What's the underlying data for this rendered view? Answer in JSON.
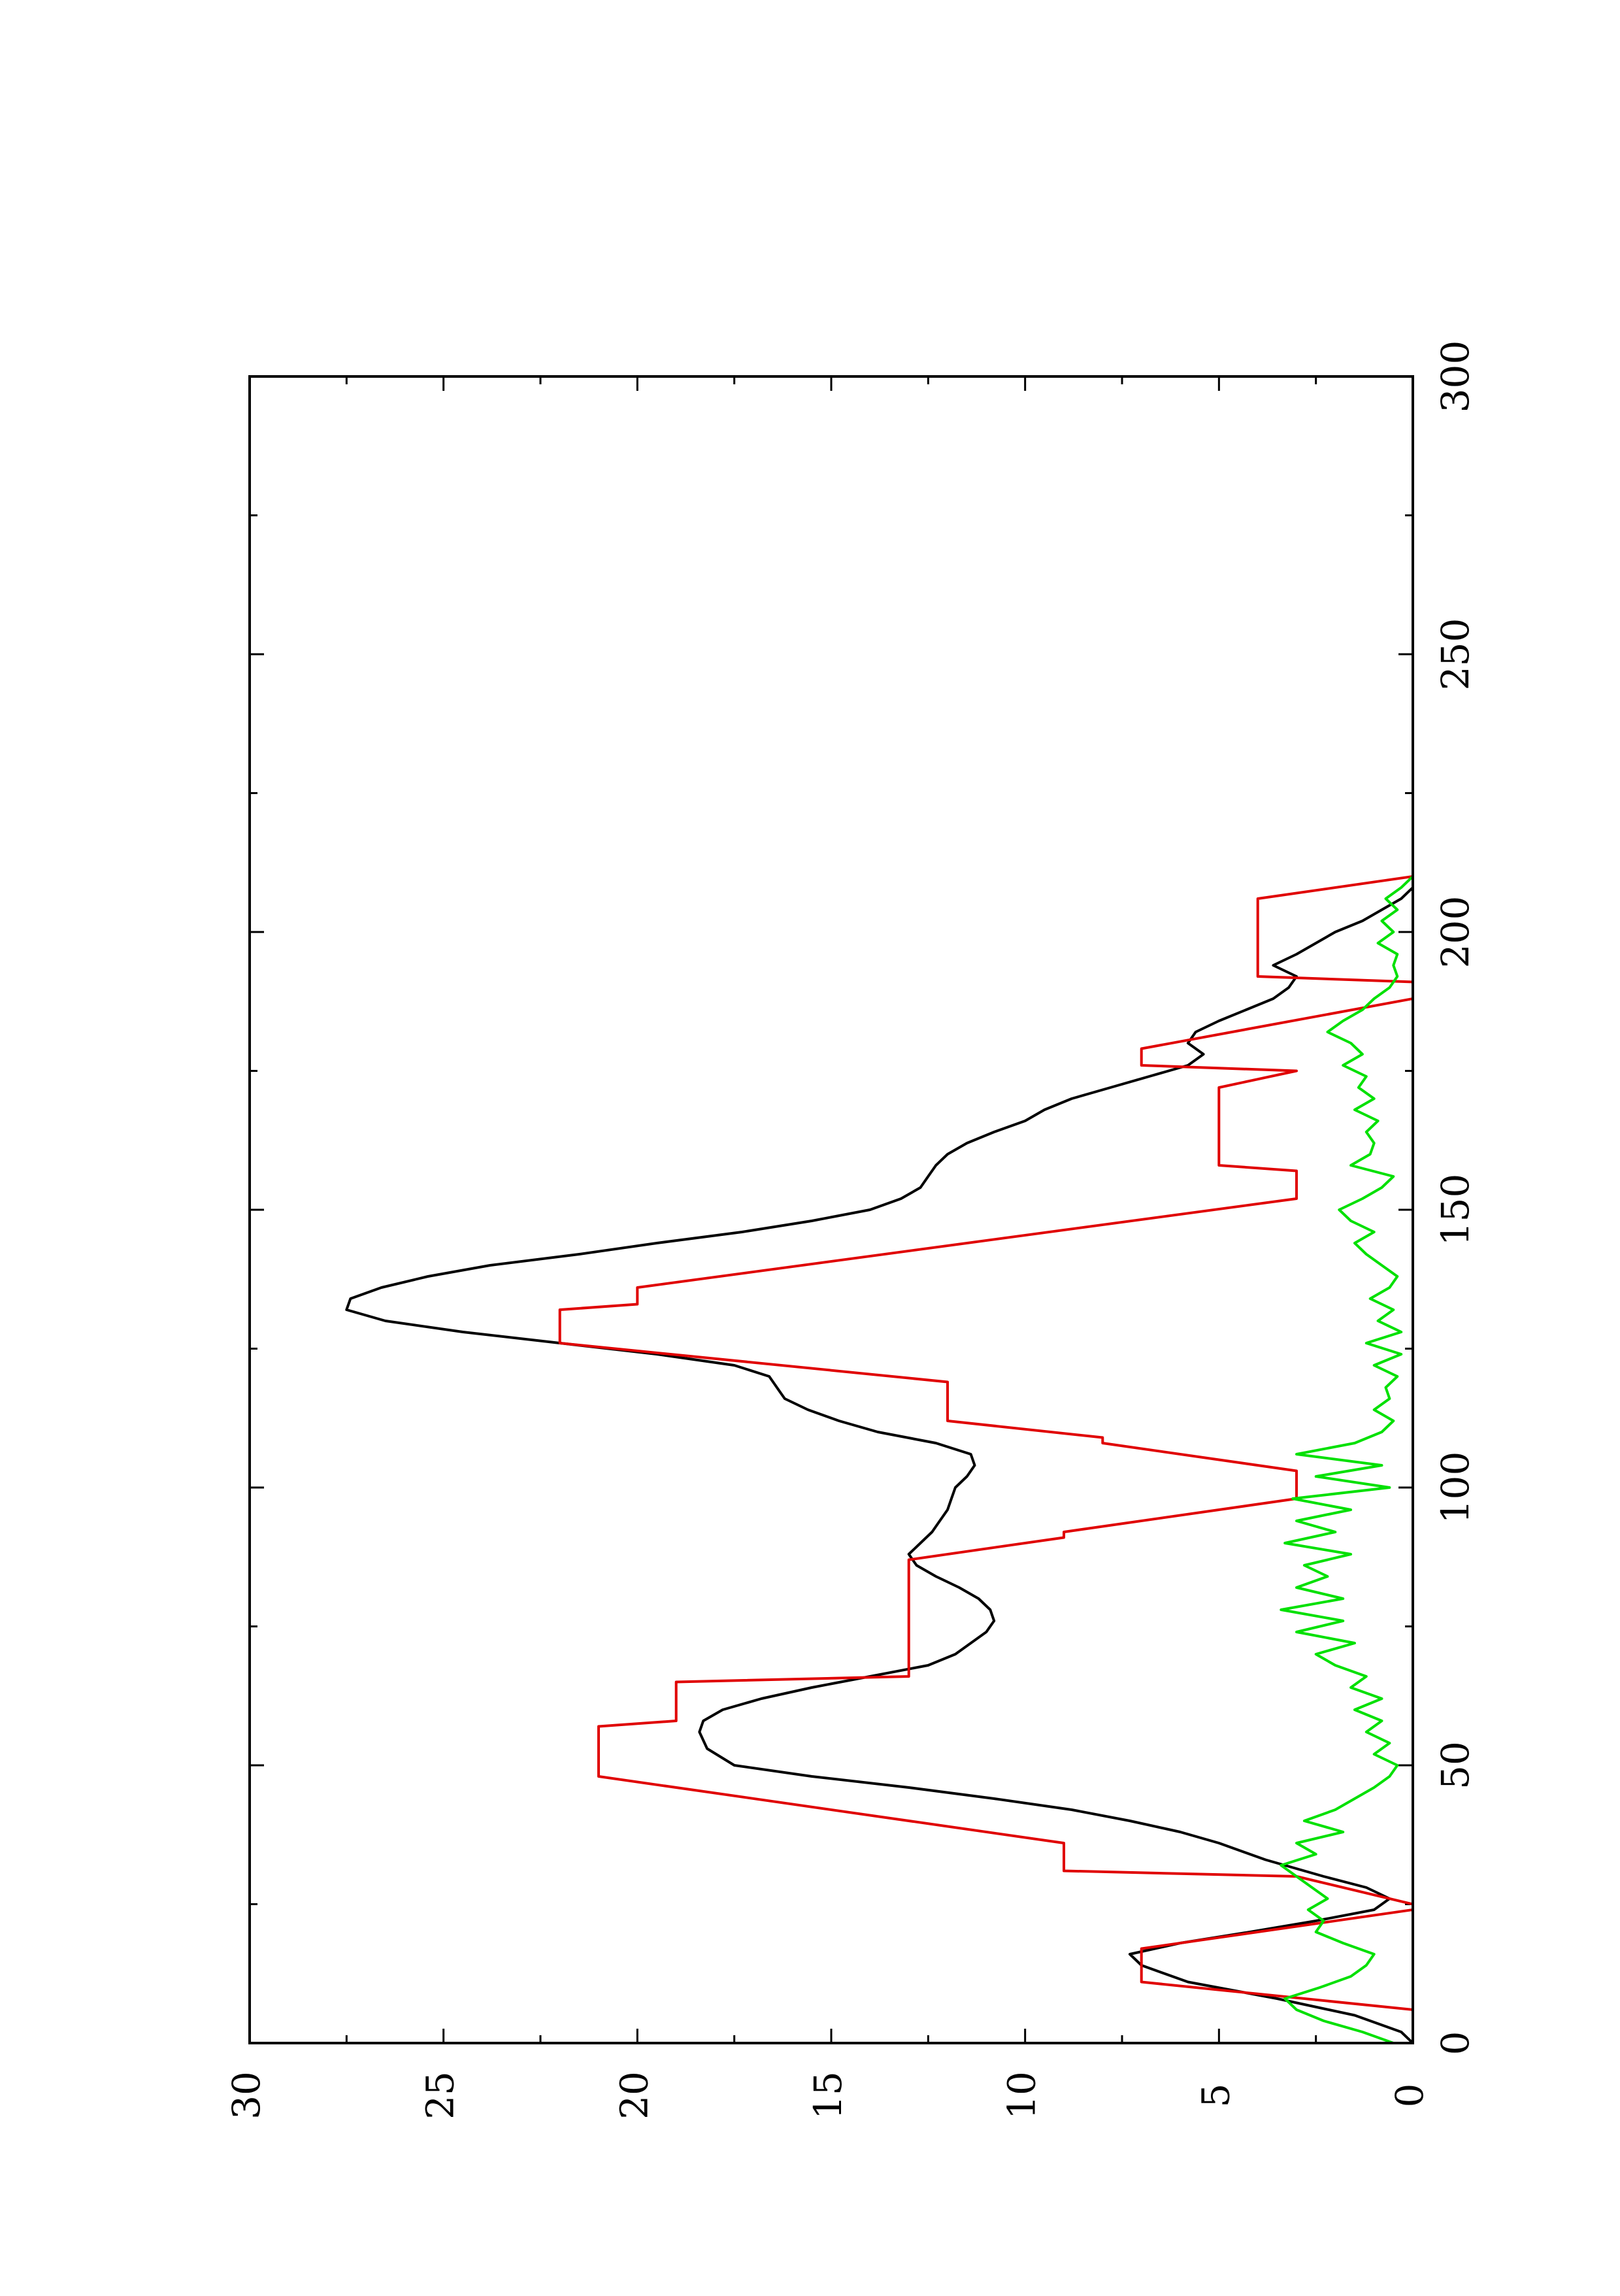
{
  "chart_data": {
    "type": "line",
    "orientation": "rotated-90-ccw",
    "title": "",
    "xlabel": "",
    "ylabel": "",
    "xlim": [
      0,
      300
    ],
    "ylim": [
      0,
      30
    ],
    "grid": false,
    "legend": "none",
    "x_ticks": [
      0,
      50,
      100,
      150,
      200,
      250,
      300
    ],
    "x_tick_labels": [
      "0",
      "50",
      "100",
      "150",
      "200",
      "250",
      "300"
    ],
    "y_ticks": [
      0,
      5,
      10,
      15,
      20,
      25,
      30
    ],
    "y_tick_labels": [
      "0",
      "5",
      "10",
      "15",
      "20",
      "25",
      "30"
    ],
    "series": [
      {
        "color": "#000000",
        "x": [
          0,
          2,
          5,
          8,
          11,
          14,
          16,
          18,
          20,
          22,
          24,
          26,
          28,
          30,
          33,
          36,
          38,
          40,
          42,
          44,
          46,
          48,
          50,
          53,
          56,
          58,
          60,
          62,
          64,
          66,
          68,
          70,
          72,
          74,
          76,
          78,
          80,
          82,
          84,
          86,
          88,
          90,
          92,
          94,
          96,
          98,
          100,
          102,
          104,
          106,
          108,
          110,
          112,
          114,
          116,
          118,
          120,
          122,
          124,
          126,
          128,
          130,
          132,
          134,
          136,
          138,
          140,
          142,
          144,
          146,
          148,
          150,
          152,
          154,
          156,
          158,
          160,
          162,
          164,
          166,
          168,
          170,
          172,
          174,
          176,
          178,
          180,
          182,
          184,
          186,
          188,
          190,
          192,
          194,
          196,
          198,
          200,
          202,
          204,
          206,
          208
        ],
        "values": [
          0,
          0.3,
          1.5,
          3.5,
          5.8,
          7.0,
          7.3,
          6.0,
          4.2,
          2.5,
          1.0,
          0.6,
          1.2,
          2.3,
          3.8,
          5.0,
          6.0,
          7.3,
          8.8,
          10.8,
          13.0,
          15.5,
          17.5,
          18.2,
          18.4,
          18.3,
          17.8,
          16.8,
          15.5,
          14.0,
          12.5,
          11.8,
          11.4,
          11.0,
          10.8,
          10.9,
          11.2,
          11.7,
          12.3,
          12.8,
          13.0,
          12.7,
          12.4,
          12.2,
          12.0,
          11.9,
          11.8,
          11.5,
          11.3,
          11.4,
          12.3,
          13.8,
          14.8,
          15.6,
          16.2,
          16.4,
          16.6,
          17.5,
          19.5,
          22.0,
          24.5,
          26.5,
          27.5,
          27.4,
          26.6,
          25.4,
          23.8,
          21.5,
          19.5,
          17.3,
          15.5,
          14.0,
          13.2,
          12.7,
          12.5,
          12.3,
          12.0,
          11.5,
          10.8,
          10.0,
          9.5,
          8.8,
          7.8,
          6.8,
          5.8,
          5.4,
          5.8,
          5.6,
          5.0,
          4.3,
          3.6,
          3.2,
          3.0,
          3.6,
          3.0,
          2.5,
          2.0,
          1.3,
          0.8,
          0.3,
          0
        ]
      },
      {
        "color": "#e00000",
        "x": [
          0,
          6,
          11,
          12,
          17,
          24,
          25,
          30,
          31,
          35,
          36,
          48,
          49,
          57,
          58,
          65,
          66,
          86,
          87,
          91,
          92,
          98,
          99,
          102,
          103,
          108,
          109,
          112,
          113,
          118,
          119,
          126,
          127,
          132,
          133,
          135,
          136,
          152,
          153,
          157,
          158,
          171,
          172,
          175,
          176,
          178,
          179,
          188,
          189,
          191,
          192,
          205,
          206,
          210
        ],
        "values": [
          0,
          0,
          7,
          7,
          7,
          0,
          0,
          3,
          9,
          9,
          9,
          21,
          21,
          21,
          19,
          19,
          13,
          13,
          13,
          9,
          9,
          3,
          3,
          3,
          3,
          8,
          8,
          12,
          12,
          12,
          12,
          22,
          22,
          22,
          20,
          20,
          20,
          3,
          3,
          3,
          5,
          5,
          5,
          3,
          7,
          7,
          7,
          0,
          0,
          0,
          4,
          4,
          4,
          0
        ]
      },
      {
        "color": "#00e000",
        "x": [
          0,
          2,
          4,
          6,
          8,
          10,
          12,
          14,
          16,
          18,
          20,
          22,
          24,
          26,
          28,
          30,
          32,
          34,
          36,
          38,
          40,
          42,
          44,
          46,
          48,
          50,
          52,
          54,
          56,
          58,
          60,
          62,
          64,
          66,
          68,
          70,
          72,
          74,
          76,
          78,
          80,
          82,
          84,
          86,
          88,
          90,
          92,
          94,
          96,
          98,
          100,
          102,
          104,
          106,
          108,
          110,
          112,
          114,
          116,
          118,
          120,
          122,
          124,
          126,
          128,
          130,
          132,
          134,
          136,
          138,
          140,
          142,
          144,
          146,
          148,
          150,
          152,
          154,
          156,
          158,
          160,
          162,
          164,
          166,
          168,
          170,
          172,
          174,
          176,
          178,
          180,
          182,
          184,
          186,
          188,
          190,
          192,
          194,
          196,
          198,
          200,
          202,
          204,
          206,
          208,
          210
        ],
        "values": [
          0.5,
          1.3,
          2.3,
          3.0,
          3.3,
          2.4,
          1.6,
          1.2,
          1.0,
          1.8,
          2.5,
          2.3,
          2.7,
          2.2,
          2.6,
          3.0,
          3.4,
          2.5,
          3.0,
          1.8,
          2.8,
          2.0,
          1.5,
          1.0,
          0.6,
          0.4,
          1.0,
          0.6,
          1.2,
          0.8,
          1.5,
          0.8,
          1.6,
          1.2,
          2.0,
          2.5,
          1.5,
          3.0,
          1.8,
          3.4,
          1.8,
          3.0,
          2.2,
          2.8,
          1.6,
          3.3,
          2.0,
          3.0,
          1.6,
          3.1,
          0.6,
          2.5,
          0.8,
          3.0,
          1.5,
          0.8,
          0.5,
          1.0,
          0.6,
          0.7,
          0.4,
          1.0,
          0.3,
          1.2,
          0.3,
          0.9,
          0.5,
          1.1,
          0.6,
          0.4,
          0.8,
          1.2,
          1.5,
          1.0,
          1.6,
          1.9,
          1.3,
          0.8,
          0.5,
          1.6,
          1.1,
          1.0,
          1.2,
          0.9,
          1.5,
          1.0,
          1.4,
          1.2,
          1.8,
          1.3,
          1.6,
          2.2,
          1.8,
          1.3,
          1.0,
          0.6,
          0.4,
          0.5,
          0.4,
          0.9,
          0.5,
          0.8,
          0.4,
          0.7,
          0.3,
          0
        ]
      }
    ]
  }
}
